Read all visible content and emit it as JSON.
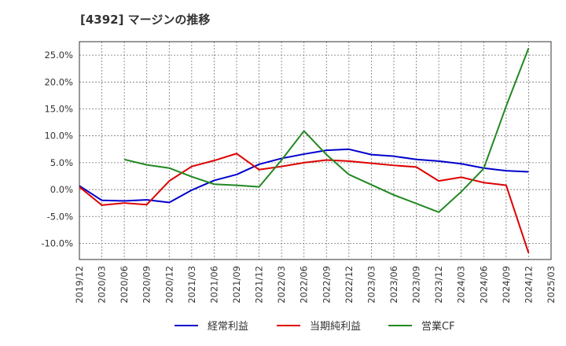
{
  "title": "[4392]  マージンの推移",
  "chart_data": {
    "type": "line",
    "x": [
      "2019/12",
      "2020/03",
      "2020/06",
      "2020/09",
      "2020/12",
      "2021/03",
      "2021/06",
      "2021/09",
      "2021/12",
      "2022/03",
      "2022/06",
      "2022/09",
      "2022/12",
      "2023/03",
      "2023/06",
      "2023/09",
      "2023/12",
      "2024/03",
      "2024/06",
      "2024/09",
      "2024/12",
      "2025/03"
    ],
    "ylim": [
      -13,
      27.5
    ],
    "yticks": [
      -10,
      -5,
      0,
      5,
      10,
      15,
      20,
      25
    ],
    "ytick_labels": [
      "-10.0%",
      "-5.0%",
      "0.0%",
      "5.0%",
      "10.0%",
      "15.0%",
      "20.0%",
      "25.0%"
    ],
    "grid": true,
    "legend_position": "bottom",
    "series": [
      {
        "name": "経常利益",
        "color": "#0000cc",
        "values": [
          0.7,
          -2.0,
          -2.1,
          -1.9,
          -2.4,
          -0.1,
          1.7,
          2.8,
          4.7,
          5.8,
          6.6,
          7.3,
          7.5,
          6.5,
          6.2,
          5.6,
          5.3,
          4.8,
          4.0,
          3.5,
          3.3,
          null
        ]
      },
      {
        "name": "当期純利益",
        "color": "#dd0000",
        "values": [
          0.5,
          -2.9,
          -2.5,
          -2.8,
          1.6,
          4.3,
          5.4,
          6.7,
          3.7,
          4.3,
          5.0,
          5.5,
          5.3,
          4.9,
          4.5,
          4.2,
          1.6,
          2.3,
          1.3,
          0.8,
          -11.8,
          null
        ]
      },
      {
        "name": "営業CF",
        "color": "#228822",
        "values": [
          null,
          null,
          5.6,
          4.6,
          4.0,
          2.4,
          1.0,
          0.8,
          0.5,
          5.5,
          10.9,
          6.5,
          2.8,
          0.9,
          -1.0,
          -2.6,
          -4.2,
          -0.4,
          3.9,
          15.5,
          26.3,
          null
        ]
      }
    ]
  }
}
